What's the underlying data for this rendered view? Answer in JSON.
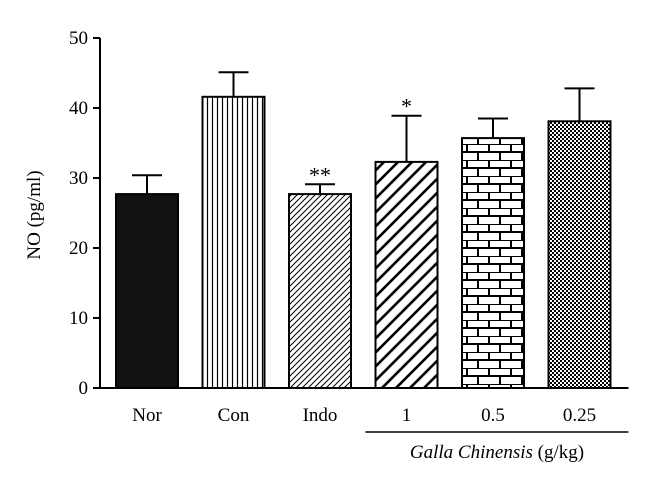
{
  "chart_data": {
    "type": "bar",
    "categories": [
      "Nor",
      "Con",
      "Indo",
      "1",
      "0.5",
      "0.25"
    ],
    "values": [
      27.7,
      41.6,
      27.7,
      32.3,
      35.7,
      38.1
    ],
    "errors": [
      2.7,
      3.5,
      1.4,
      6.6,
      2.8,
      4.7
    ],
    "significance": [
      "",
      "",
      "**",
      "*",
      "",
      ""
    ],
    "patterns": [
      "solid",
      "vertical-lines",
      "diagonal-thin",
      "diagonal-thick",
      "bricks",
      "checker"
    ],
    "ylabel": "NO (pg/ml)",
    "ylim": [
      0,
      50
    ],
    "yticks": [
      "0",
      "10",
      "20",
      "30",
      "40",
      "50"
    ],
    "group_label": {
      "italic": "Galla Chinensis",
      "rest": " (g/kg)",
      "spans": [
        "1",
        "0.5",
        "0.25"
      ]
    },
    "grid": false,
    "legend": "none",
    "colors": {
      "bar_fill": "#111111",
      "stroke": "#000000",
      "background": "#ffffff"
    }
  }
}
